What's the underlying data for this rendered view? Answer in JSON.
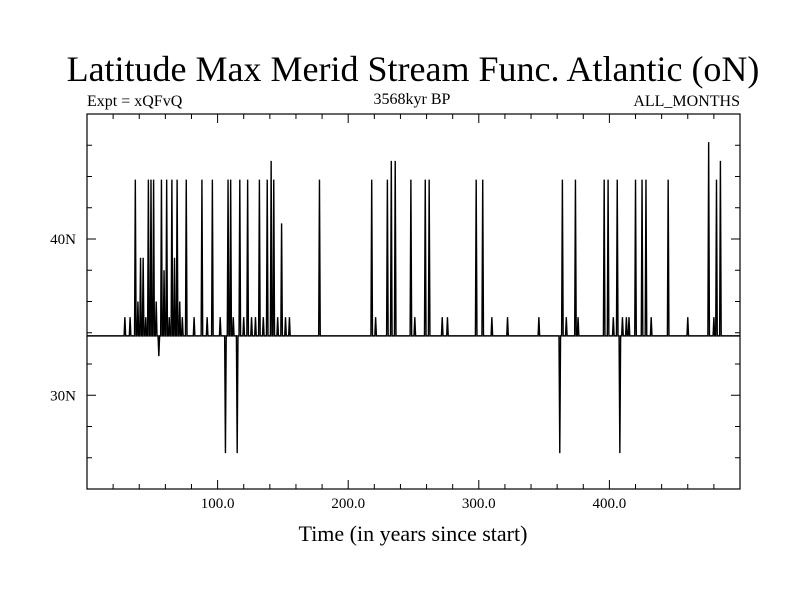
{
  "chart_data": {
    "type": "line",
    "title": "Latitude Max Merid Stream Func. Atlantic (oN)",
    "left_subtitle": "Expt = xQFvQ",
    "center_subtitle": "3568kyr BP",
    "right_subtitle": "ALL_MONTHS",
    "xlabel": "Time (in years since start)",
    "ylabel": "",
    "xlim": [
      0,
      500
    ],
    "ylim": [
      24,
      48
    ],
    "x_major_ticks": [
      100,
      200,
      300,
      400
    ],
    "x_tick_labels": [
      "100.0",
      "200.0",
      "300.0",
      "400.0"
    ],
    "x_minor_ticks": [
      20,
      40,
      60,
      80,
      120,
      140,
      160,
      180,
      220,
      240,
      260,
      280,
      320,
      340,
      360,
      380,
      420,
      440,
      460,
      480
    ],
    "y_major_ticks": [
      30,
      40
    ],
    "y_tick_labels": [
      "30N",
      "40N"
    ],
    "y_minor_ticks": [
      26,
      28,
      32,
      34,
      36,
      38,
      42,
      44,
      46
    ],
    "baseline": 33.8,
    "spikes": [
      {
        "x": 29,
        "y": 35
      },
      {
        "x": 33,
        "y": 35
      },
      {
        "x": 37,
        "y": 43.8
      },
      {
        "x": 39,
        "y": 36
      },
      {
        "x": 41,
        "y": 38.8
      },
      {
        "x": 43,
        "y": 38.8
      },
      {
        "x": 45,
        "y": 35
      },
      {
        "x": 47,
        "y": 43.8
      },
      {
        "x": 49,
        "y": 43.8
      },
      {
        "x": 51,
        "y": 43.8
      },
      {
        "x": 53,
        "y": 36
      },
      {
        "x": 55,
        "y": 32.5
      },
      {
        "x": 57,
        "y": 43.8
      },
      {
        "x": 59,
        "y": 38
      },
      {
        "x": 61,
        "y": 43.8
      },
      {
        "x": 63,
        "y": 35
      },
      {
        "x": 65,
        "y": 43.8
      },
      {
        "x": 67,
        "y": 38.8
      },
      {
        "x": 69,
        "y": 43.8
      },
      {
        "x": 71,
        "y": 36
      },
      {
        "x": 73,
        "y": 35
      },
      {
        "x": 76,
        "y": 43.8
      },
      {
        "x": 82,
        "y": 35
      },
      {
        "x": 88,
        "y": 43.8
      },
      {
        "x": 92,
        "y": 35
      },
      {
        "x": 96,
        "y": 43.8
      },
      {
        "x": 102,
        "y": 35
      },
      {
        "x": 106,
        "y": 26.3
      },
      {
        "x": 108,
        "y": 43.8
      },
      {
        "x": 110,
        "y": 43.8
      },
      {
        "x": 112,
        "y": 35
      },
      {
        "x": 115,
        "y": 26.3
      },
      {
        "x": 117,
        "y": 43.8
      },
      {
        "x": 120,
        "y": 35
      },
      {
        "x": 123,
        "y": 43.8
      },
      {
        "x": 126,
        "y": 35
      },
      {
        "x": 129,
        "y": 35
      },
      {
        "x": 132,
        "y": 43.8
      },
      {
        "x": 135,
        "y": 35
      },
      {
        "x": 138,
        "y": 43.8
      },
      {
        "x": 141,
        "y": 45
      },
      {
        "x": 143,
        "y": 43.8
      },
      {
        "x": 146,
        "y": 35
      },
      {
        "x": 149,
        "y": 41
      },
      {
        "x": 152,
        "y": 35
      },
      {
        "x": 155,
        "y": 35
      },
      {
        "x": 178,
        "y": 43.8
      },
      {
        "x": 218,
        "y": 43.8
      },
      {
        "x": 221,
        "y": 35
      },
      {
        "x": 230,
        "y": 43.8
      },
      {
        "x": 233,
        "y": 45
      },
      {
        "x": 236,
        "y": 45
      },
      {
        "x": 248,
        "y": 43.8
      },
      {
        "x": 251,
        "y": 35
      },
      {
        "x": 259,
        "y": 43.8
      },
      {
        "x": 262,
        "y": 43.8
      },
      {
        "x": 272,
        "y": 35
      },
      {
        "x": 276,
        "y": 35
      },
      {
        "x": 298,
        "y": 43.8
      },
      {
        "x": 303,
        "y": 43.8
      },
      {
        "x": 310,
        "y": 35
      },
      {
        "x": 322,
        "y": 35
      },
      {
        "x": 346,
        "y": 35
      },
      {
        "x": 362,
        "y": 26.3
      },
      {
        "x": 364,
        "y": 43.8
      },
      {
        "x": 367,
        "y": 35
      },
      {
        "x": 374,
        "y": 43.8
      },
      {
        "x": 376,
        "y": 35
      },
      {
        "x": 396,
        "y": 43.8
      },
      {
        "x": 399,
        "y": 43.8
      },
      {
        "x": 403,
        "y": 35
      },
      {
        "x": 406,
        "y": 43.8
      },
      {
        "x": 408,
        "y": 26.3
      },
      {
        "x": 410,
        "y": 35
      },
      {
        "x": 413,
        "y": 35
      },
      {
        "x": 415,
        "y": 35
      },
      {
        "x": 420,
        "y": 43.8
      },
      {
        "x": 425,
        "y": 43.8
      },
      {
        "x": 428,
        "y": 43.8
      },
      {
        "x": 432,
        "y": 35
      },
      {
        "x": 445,
        "y": 43.8
      },
      {
        "x": 460,
        "y": 35
      },
      {
        "x": 476,
        "y": 46.2
      },
      {
        "x": 480,
        "y": 35
      },
      {
        "x": 482,
        "y": 43.8
      },
      {
        "x": 485,
        "y": 45
      }
    ]
  }
}
